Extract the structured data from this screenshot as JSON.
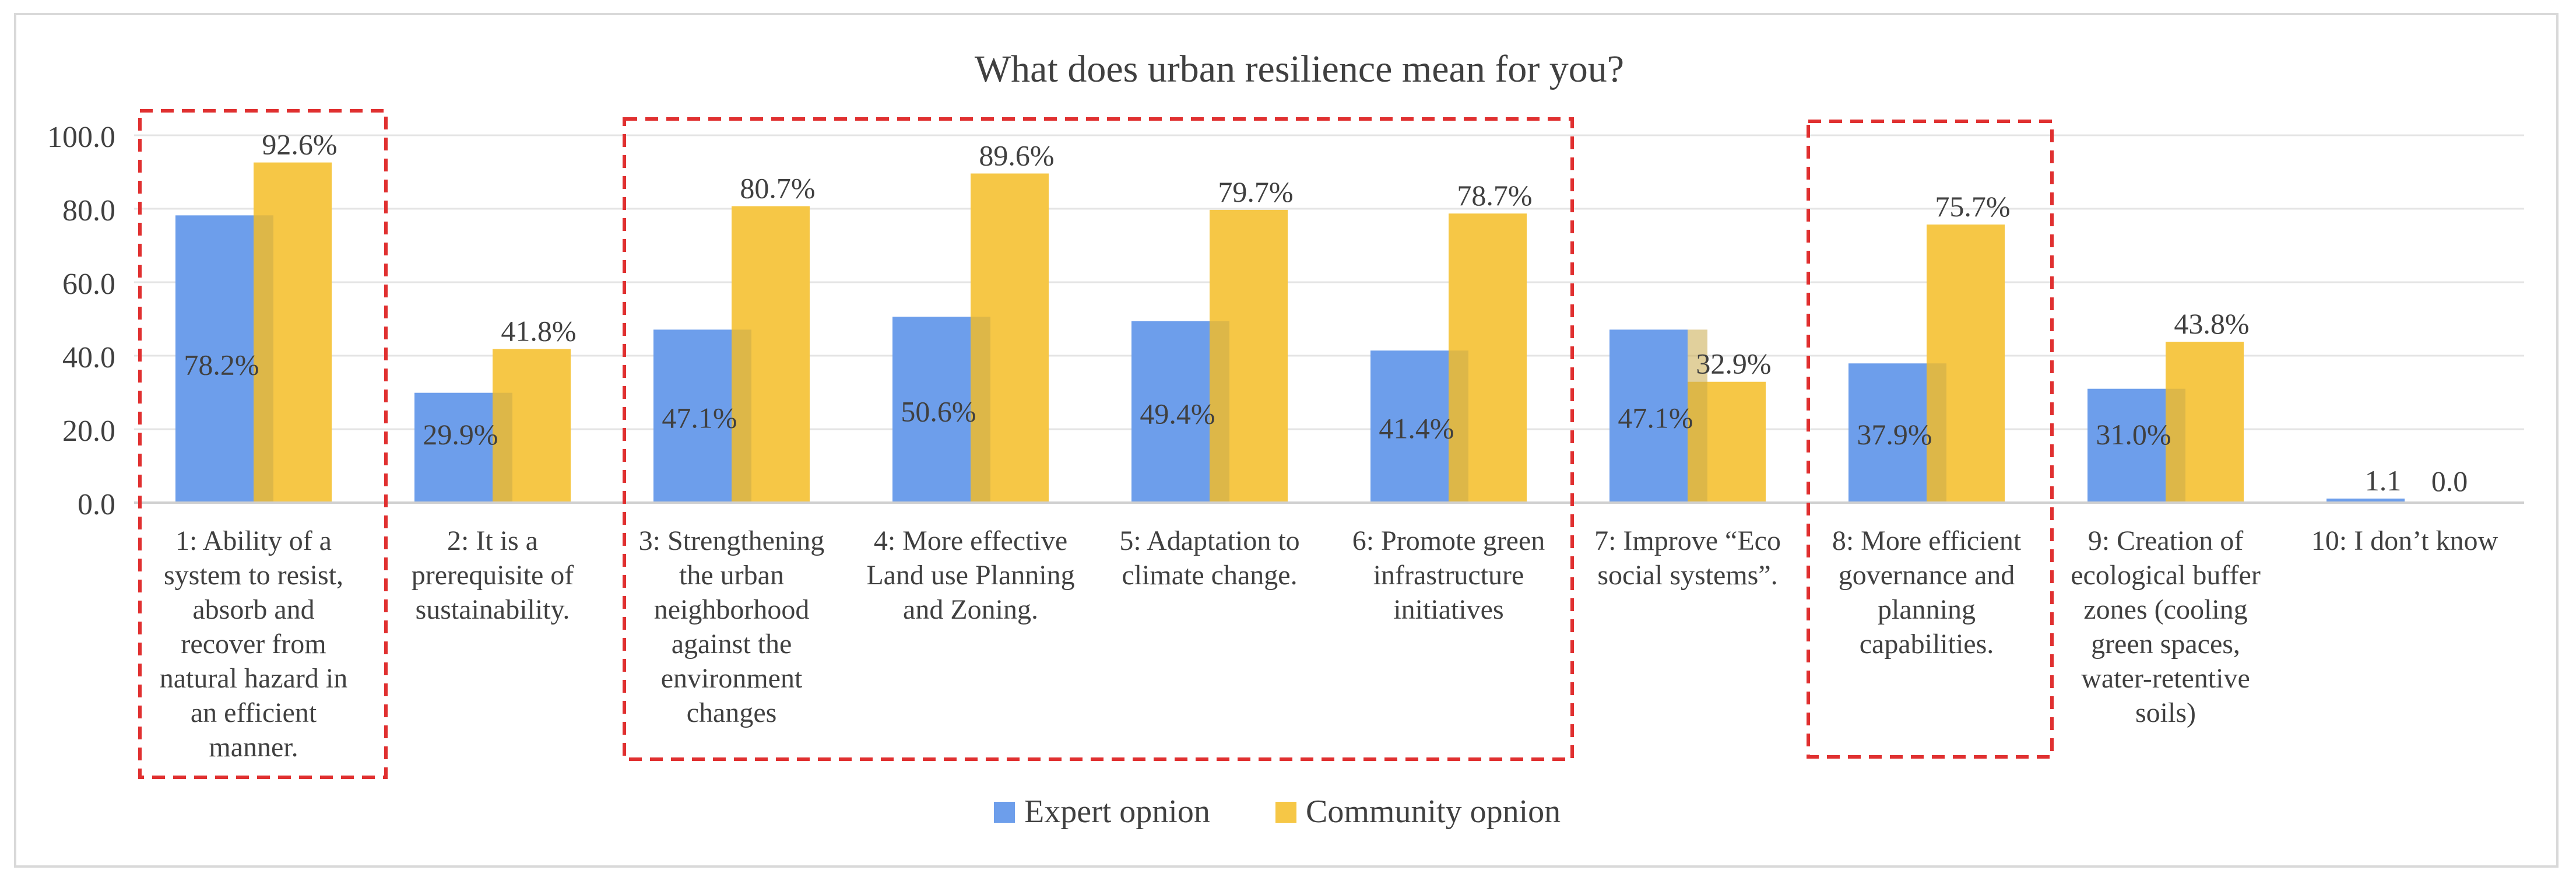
{
  "chart_data": {
    "type": "bar",
    "title": "What does urban resilience mean for you?",
    "xlabel": "",
    "ylabel": "",
    "ylim": [
      0,
      100
    ],
    "yticks": [
      "0.0",
      "20.0",
      "40.0",
      "60.0",
      "80.0",
      "100.0"
    ],
    "grid": true,
    "legend_position": "bottom",
    "categories": [
      "1: Ability of a system to resist, absorb and recover from natural hazard in an efficient manner.",
      "2: It is a prerequisite of sustainability.",
      "3: Strengthening the urban neighborhood against the environment changes",
      "4: More effective Land use Planning and Zoning.",
      "5: Adaptation to climate change.",
      "6: Promote green infrastructure initiatives",
      "7: Improve “Eco social systems”.",
      "8: More efficient governance and planning capabilities.",
      "9: Creation of ecological buffer zones (cooling green spaces, water-retentive soils)",
      "10: I don’t know"
    ],
    "category_lines": [
      [
        "1: Ability of a",
        "system to resist,",
        "absorb and",
        "recover from",
        "natural hazard in",
        "an efficient",
        "manner."
      ],
      [
        "2: It is a",
        "prerequisite of",
        "sustainability."
      ],
      [
        "3: Strengthening",
        "the urban",
        "neighborhood",
        "against the",
        "environment",
        "changes"
      ],
      [
        "4: More effective",
        "Land use Planning",
        "and Zoning."
      ],
      [
        "5: Adaptation to",
        "climate change."
      ],
      [
        "6: Promote green",
        "infrastructure",
        "initiatives"
      ],
      [
        "7: Improve “Eco",
        "social systems”."
      ],
      [
        "8: More efficient",
        "governance and",
        "planning",
        "capabilities."
      ],
      [
        "9: Creation of",
        "ecological buffer",
        "zones (cooling",
        "green spaces,",
        "water-retentive",
        "soils)"
      ],
      [
        "10: I don’t know"
      ]
    ],
    "series": [
      {
        "name": "Expert opnion",
        "color": "#6d9eeb",
        "values": [
          78.2,
          29.9,
          47.1,
          50.6,
          49.4,
          41.4,
          47.1,
          37.9,
          31.0,
          1.1
        ],
        "labels": [
          "78.2%",
          "29.9%",
          "47.1%",
          "50.6%",
          "49.4%",
          "41.4%",
          "47.1%",
          "37.9%",
          "31.0%",
          "1.1"
        ]
      },
      {
        "name": "Community opnion",
        "color": "#f6c746",
        "values": [
          92.6,
          41.8,
          80.7,
          89.6,
          79.7,
          78.7,
          32.9,
          75.7,
          43.8,
          0.0
        ],
        "labels": [
          "92.6%",
          "41.8%",
          "80.7%",
          "89.6%",
          "79.7%",
          "78.7%",
          "32.9%",
          "75.7%",
          "43.8%",
          "0.0"
        ]
      }
    ],
    "annotations": [
      {
        "type": "dashed-box",
        "color": "#e03030",
        "from_category": 0,
        "to_category": 0
      },
      {
        "type": "dashed-box",
        "color": "#e03030",
        "from_category": 2,
        "to_category": 5
      },
      {
        "type": "dashed-box",
        "color": "#e03030",
        "from_category": 7,
        "to_category": 7
      }
    ]
  }
}
